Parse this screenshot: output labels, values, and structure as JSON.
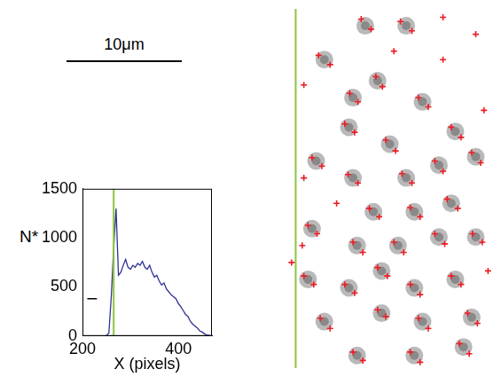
{
  "scale_bar": {
    "label": "10μm"
  },
  "chart_data": [
    {
      "type": "line",
      "x_label": "X (pixels)",
      "y_label": "N*",
      "x": [
        200,
        240,
        245,
        250,
        255,
        260,
        265,
        270,
        275,
        280,
        285,
        290,
        295,
        300,
        305,
        310,
        315,
        320,
        325,
        330,
        335,
        340,
        345,
        350,
        355,
        360,
        365,
        370,
        375,
        380,
        385,
        390,
        395,
        400,
        405,
        410,
        415,
        420,
        425,
        430,
        435,
        440,
        445,
        450,
        455,
        460,
        465,
        470
      ],
      "values": [
        0,
        0,
        0,
        5,
        30,
        400,
        900,
        1300,
        620,
        650,
        720,
        780,
        700,
        680,
        720,
        700,
        740,
        720,
        760,
        700,
        680,
        720,
        650,
        600,
        620,
        560,
        520,
        540,
        480,
        450,
        420,
        400,
        380,
        330,
        300,
        260,
        220,
        200,
        150,
        120,
        100,
        80,
        50,
        40,
        20,
        10,
        5,
        0
      ],
      "color": "#2e3192",
      "xlim": [
        200,
        470
      ],
      "xticks": [
        200,
        400
      ],
      "ylim": [
        0,
        1500
      ],
      "yticks": [
        0,
        500,
        1000,
        1500
      ],
      "grid": false,
      "boundary_x": 265,
      "marker_line": {
        "x": [
          210,
          230
        ],
        "y": 380
      }
    },
    {
      "type": "scatter",
      "xlim": [
        0,
        260
      ],
      "ylim": [
        0,
        425
      ],
      "tick_labels": false,
      "boundary_x": 20,
      "marker": "cross",
      "color": "#ed1c24",
      "spots": [
        [
          105,
          20
        ],
        [
          155,
          20
        ],
        [
          55,
          60
        ],
        [
          90,
          105
        ],
        [
          120,
          85
        ],
        [
          175,
          110
        ],
        [
          85,
          140
        ],
        [
          135,
          160
        ],
        [
          215,
          145
        ],
        [
          45,
          180
        ],
        [
          90,
          200
        ],
        [
          155,
          200
        ],
        [
          195,
          185
        ],
        [
          240,
          175
        ],
        [
          115,
          240
        ],
        [
          165,
          240
        ],
        [
          210,
          230
        ],
        [
          40,
          260
        ],
        [
          95,
          280
        ],
        [
          145,
          280
        ],
        [
          195,
          270
        ],
        [
          240,
          270
        ],
        [
          35,
          320
        ],
        [
          85,
          330
        ],
        [
          125,
          310
        ],
        [
          165,
          330
        ],
        [
          215,
          320
        ],
        [
          55,
          370
        ],
        [
          125,
          360
        ],
        [
          175,
          370
        ],
        [
          235,
          365
        ],
        [
          95,
          410
        ],
        [
          165,
          410
        ],
        [
          225,
          400
        ]
      ],
      "values": [
        [
          100,
          12
        ],
        [
          112,
          24
        ],
        [
          148,
          15
        ],
        [
          162,
          26
        ],
        [
          200,
          10
        ],
        [
          240,
          30
        ],
        [
          48,
          55
        ],
        [
          62,
          66
        ],
        [
          30,
          90
        ],
        [
          86,
          100
        ],
        [
          96,
          110
        ],
        [
          118,
          80
        ],
        [
          126,
          92
        ],
        [
          170,
          105
        ],
        [
          182,
          116
        ],
        [
          80,
          136
        ],
        [
          92,
          146
        ],
        [
          130,
          155
        ],
        [
          142,
          168
        ],
        [
          210,
          140
        ],
        [
          222,
          152
        ],
        [
          250,
          120
        ],
        [
          40,
          176
        ],
        [
          52,
          186
        ],
        [
          30,
          200
        ],
        [
          84,
          196
        ],
        [
          96,
          206
        ],
        [
          150,
          195
        ],
        [
          162,
          206
        ],
        [
          190,
          180
        ],
        [
          200,
          192
        ],
        [
          235,
          170
        ],
        [
          246,
          182
        ],
        [
          110,
          236
        ],
        [
          122,
          246
        ],
        [
          160,
          235
        ],
        [
          172,
          246
        ],
        [
          205,
          225
        ],
        [
          218,
          236
        ],
        [
          35,
          256
        ],
        [
          46,
          266
        ],
        [
          28,
          280
        ],
        [
          90,
          276
        ],
        [
          102,
          288
        ],
        [
          140,
          276
        ],
        [
          152,
          288
        ],
        [
          190,
          266
        ],
        [
          202,
          278
        ],
        [
          236,
          266
        ],
        [
          248,
          276
        ],
        [
          15,
          300
        ],
        [
          30,
          316
        ],
        [
          42,
          326
        ],
        [
          80,
          326
        ],
        [
          92,
          336
        ],
        [
          120,
          306
        ],
        [
          132,
          316
        ],
        [
          160,
          326
        ],
        [
          172,
          338
        ],
        [
          210,
          316
        ],
        [
          222,
          326
        ],
        [
          50,
          366
        ],
        [
          62,
          378
        ],
        [
          120,
          356
        ],
        [
          130,
          364
        ],
        [
          170,
          366
        ],
        [
          182,
          378
        ],
        [
          230,
          360
        ],
        [
          242,
          372
        ],
        [
          90,
          406
        ],
        [
          102,
          416
        ],
        [
          160,
          406
        ],
        [
          172,
          418
        ],
        [
          220,
          396
        ],
        [
          232,
          408
        ],
        [
          70,
          230
        ],
        [
          255,
          310
        ],
        [
          140,
          50
        ],
        [
          200,
          60
        ]
      ]
    }
  ]
}
